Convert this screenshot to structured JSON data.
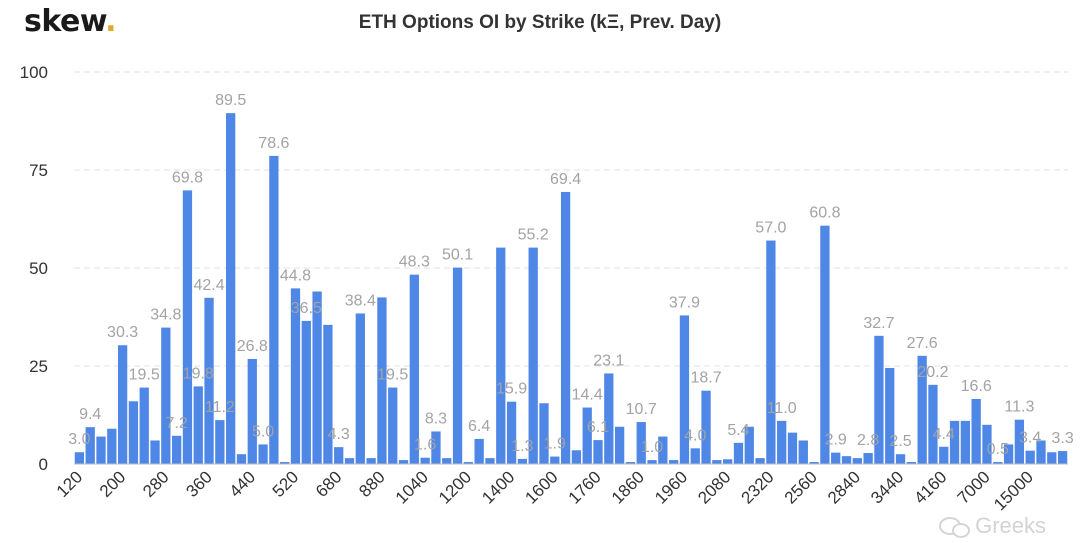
{
  "brand": {
    "logo_text": "skew",
    "logo_dot": "."
  },
  "watermark": {
    "text": "Greeks"
  },
  "chart_data": {
    "type": "bar",
    "title": "ETH Options OI by Strike (kΞ, Prev. Day)",
    "xlabel": "",
    "ylabel": "",
    "ylim": [
      0,
      100
    ],
    "yticks": [
      0,
      25,
      50,
      75,
      100
    ],
    "grid": true,
    "bar_color": "#4f87e6",
    "label_color": "#a3a3a3",
    "categories": [
      "120",
      "",
      "",
      "",
      "200",
      "",
      "",
      "",
      "280",
      "",
      "",
      "",
      "360",
      "",
      "",
      "",
      "440",
      "",
      "",
      "",
      "520",
      "",
      "",
      "",
      "680",
      "",
      "",
      "",
      "880",
      "",
      "",
      "",
      "1040",
      "",
      "",
      "",
      "1200",
      "",
      "",
      "",
      "1400",
      "",
      "",
      "",
      "1600",
      "",
      "",
      "",
      "1760",
      "",
      "",
      "",
      "1860",
      "",
      "",
      "",
      "1960",
      "",
      "",
      "",
      "2080",
      "",
      "",
      "",
      "2320",
      "",
      "",
      "",
      "2560",
      "",
      "",
      "",
      "2840",
      "",
      "",
      "",
      "3440",
      "",
      "",
      "",
      "4160",
      "",
      "",
      "",
      "7000",
      "",
      "",
      "",
      "15000",
      "",
      "",
      ""
    ],
    "values": [
      3.0,
      9.4,
      7.0,
      9.0,
      30.3,
      16.0,
      19.5,
      6.0,
      34.8,
      7.2,
      69.8,
      19.8,
      42.4,
      11.2,
      89.5,
      2.5,
      26.8,
      5.0,
      78.6,
      0.5,
      44.8,
      36.5,
      44.0,
      35.5,
      4.3,
      1.5,
      38.4,
      1.5,
      42.5,
      19.5,
      1.0,
      48.3,
      1.6,
      8.3,
      1.5,
      50.1,
      0.5,
      6.4,
      1.5,
      55.2,
      15.9,
      1.3,
      55.2,
      15.5,
      1.9,
      69.4,
      3.5,
      14.4,
      6.1,
      23.1,
      9.5,
      0.5,
      10.7,
      1.0,
      7.0,
      1.0,
      37.9,
      4.0,
      18.7,
      1.0,
      1.2,
      5.4,
      9.5,
      1.5,
      57.0,
      11.0,
      8.0,
      6.0,
      0.5,
      60.8,
      2.9,
      2.0,
      1.5,
      2.8,
      32.7,
      24.5,
      2.5,
      0.5,
      27.6,
      20.2,
      4.4,
      11.0,
      11.0,
      16.6,
      10.0,
      0.5,
      5.0,
      11.3,
      3.4,
      6.0,
      3.0,
      3.3
    ],
    "data_labels": [
      "3.0",
      "9.4",
      "",
      "",
      "30.3",
      "",
      "19.5",
      "",
      "34.8",
      "7.2",
      "69.8",
      "19.8",
      "42.4",
      "11.2",
      "89.5",
      "",
      "26.8",
      "5.0",
      "78.6",
      "",
      "44.8",
      "36.5",
      "",
      "",
      "4.3",
      "",
      "38.4",
      "",
      "",
      "19.5",
      "",
      "48.3",
      "1.6",
      "8.3",
      "",
      "50.1",
      "",
      "6.4",
      "",
      "",
      "15.9",
      "1.3",
      "55.2",
      "",
      "1.9",
      "69.4",
      "",
      "14.4",
      "6.1",
      "23.1",
      "",
      "",
      "10.7",
      "1.0",
      "",
      "",
      "37.9",
      "4.0",
      "18.7",
      "",
      "",
      "5.4",
      "",
      "",
      "57.0",
      "11.0",
      "",
      "",
      "",
      "60.8",
      "2.9",
      "",
      "",
      "2.8",
      "32.7",
      "",
      "2.5",
      "",
      "27.6",
      "20.2",
      "4.4",
      "",
      "",
      "16.6",
      "",
      "0.5",
      "",
      "11.3",
      "3.4",
      "",
      "",
      "3.3"
    ]
  }
}
